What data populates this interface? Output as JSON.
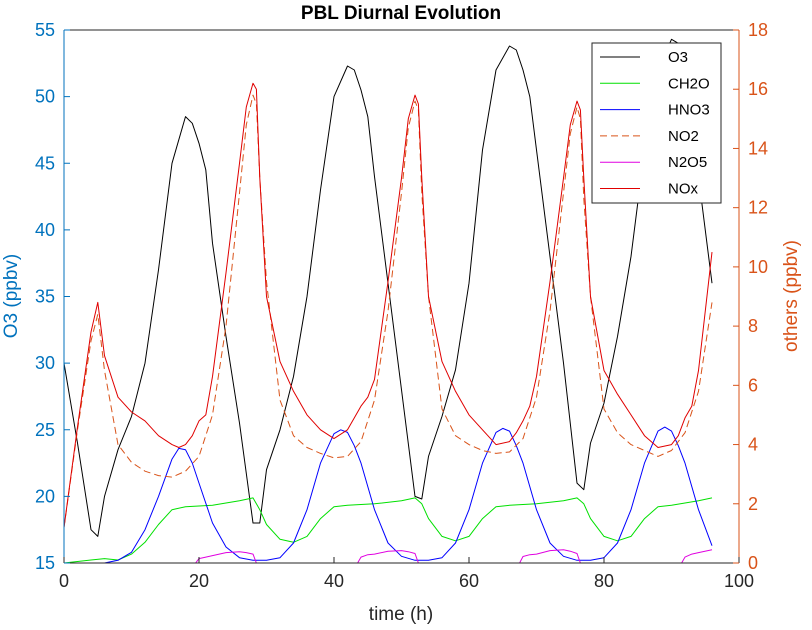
{
  "chart_data": {
    "type": "line",
    "title": "PBL Diurnal Evolution",
    "xlabel": "time (h)",
    "ylabel_left": "O3 (ppbv)",
    "ylabel_right": "others (ppbv)",
    "xlim": [
      0,
      100
    ],
    "ylim_left": [
      15,
      55
    ],
    "ylim_right": [
      0,
      18
    ],
    "x_ticks": [
      "0",
      "20",
      "40",
      "60",
      "80",
      "100"
    ],
    "y_left_ticks": [
      "15",
      "20",
      "25",
      "30",
      "35",
      "40",
      "45",
      "50",
      "55"
    ],
    "y_right_ticks": [
      "0",
      "2",
      "4",
      "6",
      "8",
      "10",
      "12",
      "14",
      "16",
      "18"
    ],
    "colors": {
      "left_axis": "#0072BD",
      "right_axis": "#D95319",
      "frame": "#262626"
    },
    "legend": {
      "location": "top-right",
      "entries": [
        "O3",
        "CH2O",
        "HNO3",
        "NO2",
        "N2O5",
        "NOx"
      ]
    },
    "series": [
      {
        "name": "O3",
        "axis": "left",
        "color": "#000000",
        "dash": "solid",
        "x": [
          0,
          2,
          4,
          5,
          6,
          8,
          10,
          12,
          14,
          16,
          18,
          19,
          20,
          21,
          22,
          24,
          26,
          28,
          29,
          30,
          32,
          34,
          36,
          38,
          40,
          42,
          43,
          44,
          45,
          46,
          48,
          50,
          52,
          53,
          54,
          56,
          58,
          60,
          62,
          64,
          66,
          67,
          68,
          69,
          70,
          72,
          74,
          76,
          77,
          78,
          80,
          82,
          84,
          86,
          88,
          90,
          91,
          92,
          93,
          94,
          96
        ],
        "y": [
          30,
          24,
          17.5,
          17,
          20,
          23.5,
          26,
          30,
          37,
          45,
          48.5,
          48,
          46.5,
          44.5,
          39,
          32,
          25.5,
          18,
          18,
          22,
          25,
          29,
          35,
          43,
          50,
          52.3,
          52,
          50.5,
          48.5,
          44,
          36,
          28,
          20,
          19.8,
          23,
          26,
          29.5,
          36,
          46,
          52,
          53.8,
          53.5,
          52,
          50,
          46,
          38,
          30,
          21,
          20.5,
          24,
          27,
          32,
          38,
          46,
          52,
          54.3,
          54,
          52,
          48,
          44,
          36
        ]
      },
      {
        "name": "CH2O",
        "axis": "right",
        "color": "#00E000",
        "dash": "solid",
        "x": [
          0,
          4,
          6,
          8,
          10,
          12,
          14,
          16,
          18,
          22,
          26,
          28,
          29,
          30,
          32,
          34,
          36,
          38,
          40,
          42,
          46,
          50,
          52,
          53,
          54,
          56,
          58,
          60,
          62,
          64,
          66,
          70,
          74,
          76,
          77,
          78,
          80,
          82,
          84,
          86,
          88,
          90,
          94,
          96
        ],
        "y": [
          0,
          0.1,
          0.15,
          0.1,
          0.3,
          0.7,
          1.3,
          1.8,
          1.9,
          1.95,
          2.1,
          2.2,
          1.8,
          1.3,
          0.8,
          0.7,
          0.9,
          1.5,
          1.9,
          1.95,
          2.0,
          2.1,
          2.2,
          2.0,
          1.5,
          0.9,
          0.75,
          0.9,
          1.5,
          1.9,
          1.95,
          2.0,
          2.1,
          2.2,
          2.0,
          1.5,
          0.9,
          0.75,
          0.9,
          1.5,
          1.9,
          1.95,
          2.1,
          2.2
        ]
      },
      {
        "name": "HNO3",
        "axis": "left",
        "color": "#0000FF",
        "dash": "solid",
        "x": [
          0,
          6,
          8,
          10,
          12,
          14,
          16,
          17,
          18,
          19,
          20,
          22,
          24,
          26,
          28,
          30,
          32,
          34,
          36,
          38,
          40,
          41,
          42,
          43,
          44,
          46,
          48,
          50,
          52,
          54,
          56,
          58,
          60,
          62,
          64,
          65,
          66,
          67,
          68,
          70,
          72,
          74,
          76,
          78,
          80,
          82,
          84,
          86,
          88,
          89,
          90,
          91,
          92,
          94,
          96
        ],
        "y": [
          15,
          15,
          15.2,
          15.8,
          17.5,
          20,
          22.8,
          23.6,
          23.5,
          22.5,
          21,
          18,
          16.2,
          15.4,
          15.2,
          15.2,
          15.4,
          16.5,
          19,
          22.5,
          24.7,
          25,
          24.8,
          23.8,
          22.5,
          19,
          16.5,
          15.5,
          15.2,
          15.2,
          15.4,
          16.5,
          19,
          22.5,
          24.8,
          25.1,
          24.9,
          23.8,
          22.5,
          19,
          16.5,
          15.5,
          15.2,
          15.2,
          15.4,
          16.5,
          19,
          22.5,
          24.9,
          25.2,
          24.9,
          23.8,
          22.5,
          19,
          16.3
        ]
      },
      {
        "name": "NO2",
        "axis": "right",
        "color": "#D95319",
        "dash": "dashed",
        "x": [
          0,
          2,
          4,
          5,
          6,
          8,
          10,
          12,
          14,
          16,
          18,
          20,
          22,
          24,
          26,
          27,
          28,
          28.5,
          29,
          30,
          32,
          34,
          36,
          38,
          40,
          42,
          44,
          46,
          48,
          50,
          51,
          52,
          52.5,
          53,
          54,
          56,
          58,
          60,
          62,
          64,
          66,
          68,
          70,
          72,
          74,
          75,
          76,
          76.5,
          77,
          78,
          80,
          82,
          84,
          86,
          88,
          90,
          92,
          94,
          96
        ],
        "y": [
          1.2,
          4.5,
          7.5,
          8.4,
          6.5,
          4,
          3.4,
          3.1,
          2.95,
          2.9,
          3.1,
          3.6,
          5,
          8,
          12.5,
          14.8,
          15.8,
          15.5,
          13,
          9.5,
          5.5,
          4.3,
          3.9,
          3.7,
          3.55,
          3.6,
          4.1,
          5.5,
          8.5,
          12.5,
          14.7,
          15.6,
          15.3,
          12.5,
          9,
          5.2,
          4.3,
          4.0,
          3.8,
          3.7,
          3.75,
          4.2,
          5.6,
          8.5,
          12.5,
          14.5,
          15.4,
          15.0,
          12.3,
          9,
          5.2,
          4.4,
          4.0,
          3.8,
          3.6,
          3.8,
          4.4,
          5.8,
          8.8
        ]
      },
      {
        "name": "N2O5",
        "axis": "right",
        "color": "#E000E0",
        "dash": "solid",
        "x": [
          0,
          19.5,
          20,
          21,
          22,
          24,
          26,
          27,
          28,
          28.5,
          43.5,
          44,
          45,
          46,
          48,
          50,
          51,
          52,
          52.5,
          67.5,
          68,
          69,
          70,
          72,
          74,
          75,
          76,
          76.5,
          91.5,
          92,
          93,
          94,
          96
        ],
        "y": [
          0,
          0,
          0.15,
          0.2,
          0.25,
          0.35,
          0.38,
          0.35,
          0.3,
          0,
          0,
          0.2,
          0.28,
          0.3,
          0.4,
          0.42,
          0.38,
          0.32,
          0,
          0,
          0.22,
          0.28,
          0.3,
          0.42,
          0.45,
          0.4,
          0.32,
          0,
          0,
          0.2,
          0.3,
          0.35,
          0.45
        ]
      },
      {
        "name": "NOx",
        "axis": "right",
        "color": "#E00000",
        "dash": "solid",
        "x": [
          0,
          2,
          4,
          5,
          6,
          8,
          10,
          12,
          14,
          16,
          17,
          18,
          19,
          20,
          21,
          22,
          24,
          26,
          27,
          28,
          28.5,
          29,
          30,
          32,
          34,
          36,
          38,
          40,
          42,
          43,
          44,
          45,
          46,
          48,
          50,
          51,
          52,
          52.5,
          53,
          54,
          56,
          58,
          60,
          62,
          64,
          66,
          67,
          68,
          69,
          70,
          72,
          74,
          75,
          76,
          76.5,
          77,
          78,
          80,
          82,
          84,
          86,
          88,
          90,
          91,
          92,
          93,
          94,
          96
        ],
        "y": [
          1.2,
          4.6,
          7.8,
          8.8,
          7,
          5.6,
          5.1,
          4.8,
          4.3,
          4.0,
          3.9,
          4.0,
          4.3,
          4.8,
          5,
          6.3,
          9.8,
          13.5,
          15.4,
          16.2,
          16.0,
          13,
          9,
          6.8,
          5.8,
          5.0,
          4.5,
          4.2,
          4.5,
          4.9,
          5.3,
          5.6,
          6.2,
          9.5,
          13,
          15,
          15.8,
          15.5,
          13,
          9,
          6.8,
          5.8,
          5.0,
          4.5,
          4.0,
          4.1,
          4.4,
          4.8,
          5.3,
          6.3,
          9.5,
          13,
          14.8,
          15.6,
          15.3,
          13,
          9,
          6.5,
          5.7,
          5.0,
          4.3,
          3.9,
          4.0,
          4.3,
          4.9,
          5.3,
          6.5,
          10.5
        ]
      }
    ]
  }
}
